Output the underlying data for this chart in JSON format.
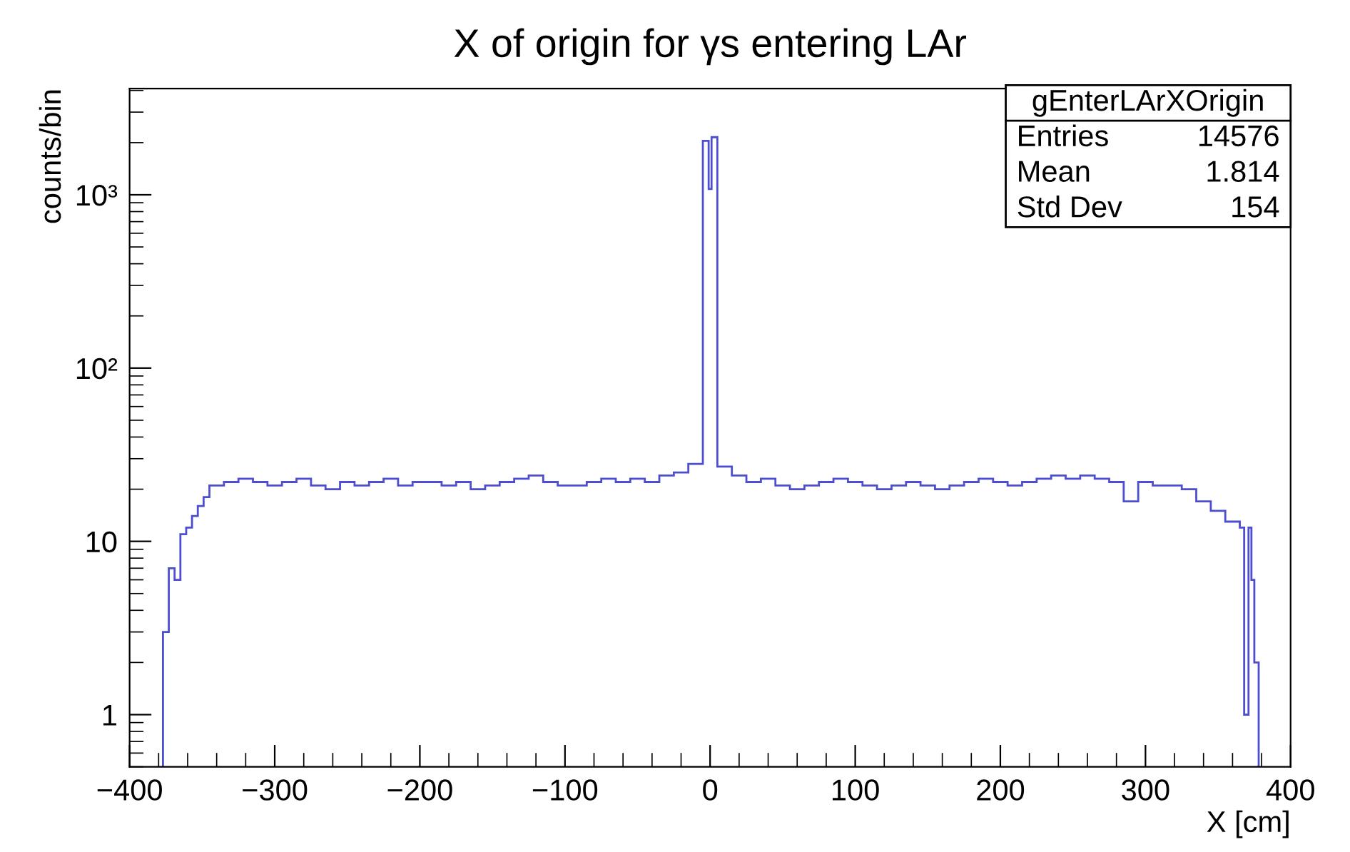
{
  "chart_data": {
    "type": "histogram",
    "title": "X of origin for γs entering LAr",
    "xlabel": "X [cm]",
    "ylabel": "counts/bin",
    "bins": [
      -377,
      -373,
      -369,
      -365,
      -361,
      -357,
      -353,
      -349,
      -345,
      -335,
      -325,
      -315,
      -305,
      -295,
      -285,
      -275,
      -265,
      -255,
      -245,
      -235,
      -225,
      -215,
      -205,
      -195,
      -185,
      -175,
      -165,
      -155,
      -145,
      -135,
      -125,
      -115,
      -105,
      -95,
      -85,
      -75,
      -65,
      -55,
      -45,
      -35,
      -25,
      -15,
      -5,
      -1,
      1,
      5,
      15,
      25,
      35,
      45,
      55,
      65,
      75,
      85,
      95,
      105,
      115,
      125,
      135,
      145,
      155,
      165,
      175,
      185,
      195,
      205,
      215,
      225,
      235,
      245,
      255,
      265,
      275,
      285,
      295,
      305,
      315,
      325,
      335,
      345,
      355,
      365,
      368,
      371,
      373,
      375,
      378
    ],
    "values": [
      3,
      7,
      6,
      11,
      12,
      14,
      16,
      18,
      21,
      22,
      23,
      22,
      21,
      22,
      23,
      21,
      20,
      22,
      21,
      22,
      23,
      21,
      22,
      22,
      21,
      22,
      20,
      21,
      22,
      23,
      24,
      22,
      21,
      21,
      22,
      23,
      22,
      23,
      22,
      24,
      25,
      28,
      2050,
      1080,
      2150,
      27,
      24,
      22,
      23,
      21,
      20,
      21,
      22,
      23,
      22,
      21,
      20,
      21,
      22,
      21,
      20,
      21,
      22,
      23,
      22,
      21,
      22,
      23,
      24,
      23,
      24,
      23,
      22,
      17,
      22,
      21,
      21,
      20,
      17,
      15,
      13,
      12,
      1,
      12,
      6,
      2
    ],
    "color": "#4d4dd1",
    "log": "y",
    "grid": false,
    "xlim": [
      -400,
      400
    ],
    "xticks": [
      -400,
      -300,
      -200,
      -100,
      0,
      100,
      200,
      300,
      400
    ],
    "ylim": [
      0.5,
      4100
    ],
    "yticks": [
      1,
      10,
      {
        "value": 100,
        "label": "10²"
      },
      {
        "value": 1000,
        "label": "10³"
      }
    ],
    "annotations": [
      "gEnterLArXOrigin",
      "Entries",
      "14576",
      "Mean",
      "1.814",
      "Std Dev",
      "154"
    ]
  }
}
